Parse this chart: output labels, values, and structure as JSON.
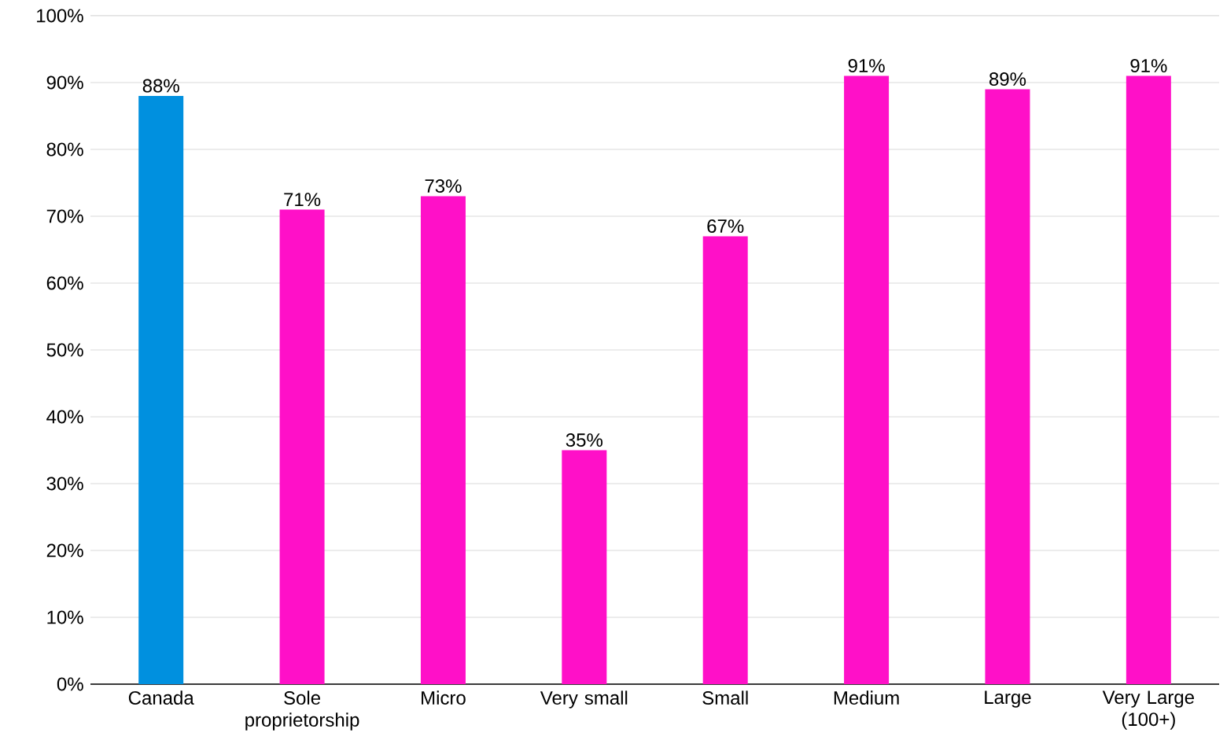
{
  "chart_data": {
    "type": "bar",
    "categories": [
      "Canada",
      "Sole proprietorship",
      "Micro",
      "Very small",
      "Small",
      "Medium",
      "Large",
      "Very Large (100+)"
    ],
    "values": [
      88,
      71,
      73,
      35,
      67,
      91,
      89,
      91
    ],
    "colors": [
      "#0090df",
      "#ff10c8",
      "#ff10c8",
      "#ff10c8",
      "#ff10c8",
      "#ff10c8",
      "#ff10c8",
      "#ff10c8"
    ],
    "ylim": [
      0,
      100
    ],
    "yticks": [
      {
        "value": 0,
        "label": "0%"
      },
      {
        "value": 10,
        "label": "10%"
      },
      {
        "value": 20,
        "label": "20%"
      },
      {
        "value": 30,
        "label": "30%"
      },
      {
        "value": 40,
        "label": "40%"
      },
      {
        "value": 50,
        "label": "50%"
      },
      {
        "value": 60,
        "label": "60%"
      },
      {
        "value": 70,
        "label": "70%"
      },
      {
        "value": 80,
        "label": "80%"
      },
      {
        "value": 90,
        "label": "90%"
      },
      {
        "value": 100,
        "label": "100%"
      }
    ],
    "value_labels": [
      "88%",
      "71%",
      "73%",
      "35%",
      "67%",
      "91%",
      "89%",
      "91%"
    ],
    "grid": "y"
  }
}
